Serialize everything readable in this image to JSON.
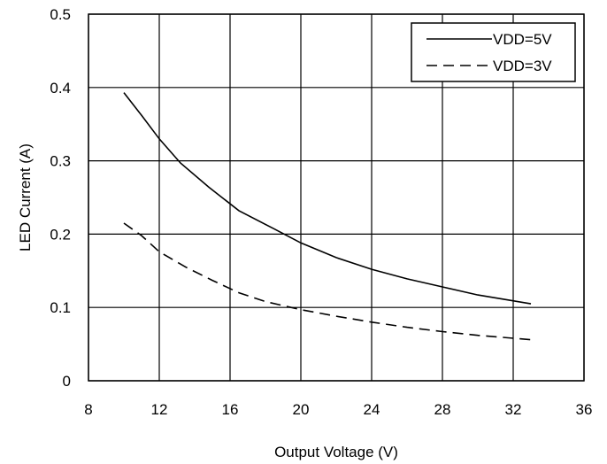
{
  "chart_data": {
    "type": "line",
    "title": "",
    "xlabel": "Output Voltage (V)",
    "ylabel": "LED Current (A)",
    "xlim": [
      8,
      36
    ],
    "ylim": [
      0,
      0.5
    ],
    "x_ticks": [
      "8",
      "12",
      "16",
      "20",
      "24",
      "28",
      "32",
      "36"
    ],
    "y_ticks": [
      "0",
      "0.1",
      "0.2",
      "0.3",
      "0.4",
      "0.5"
    ],
    "grid": true,
    "legend_position": "top-right",
    "series": [
      {
        "name": "VDD=5V",
        "style": "solid",
        "color": "#000000",
        "x": [
          10,
          11,
          12,
          13.2,
          14.8,
          16.5,
          18.5,
          20,
          22,
          24,
          26,
          28,
          30,
          33
        ],
        "y": [
          0.393,
          0.362,
          0.33,
          0.297,
          0.264,
          0.232,
          0.207,
          0.188,
          0.168,
          0.152,
          0.139,
          0.128,
          0.117,
          0.105
        ]
      },
      {
        "name": "VDD=3V",
        "style": "dashed",
        "color": "#000000",
        "x": [
          10,
          11,
          12,
          13.5,
          15,
          16.5,
          18,
          20,
          22,
          24,
          26,
          28,
          30,
          33
        ],
        "y": [
          0.215,
          0.198,
          0.176,
          0.155,
          0.137,
          0.12,
          0.108,
          0.097,
          0.088,
          0.08,
          0.073,
          0.067,
          0.062,
          0.056
        ]
      }
    ]
  }
}
